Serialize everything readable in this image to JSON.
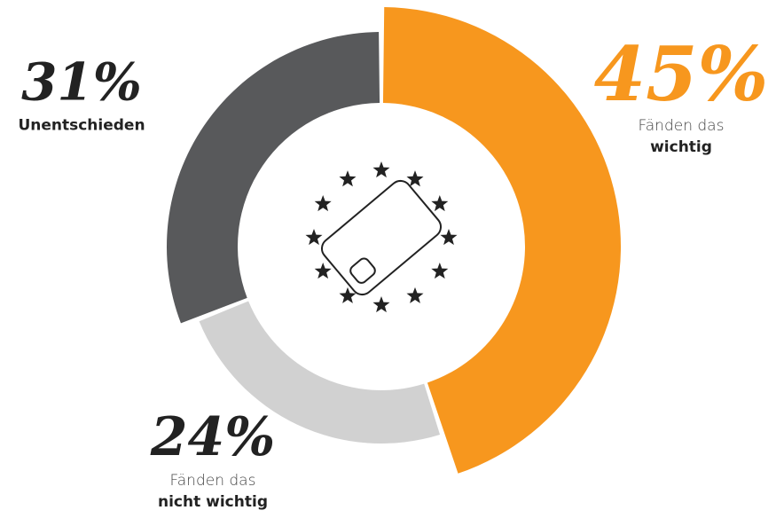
{
  "chart_data": {
    "type": "donut",
    "categories": [
      "wichtig",
      "nicht wichtig",
      "Unentschieden"
    ],
    "category_prefix": [
      "Fänden das",
      "Fänden das",
      null
    ],
    "values": [
      45,
      24,
      31
    ],
    "value_labels": [
      "45%",
      "24%",
      "31%"
    ],
    "colors": [
      "#f7971e",
      "#d1d1d1",
      "#58595b"
    ]
  }
}
